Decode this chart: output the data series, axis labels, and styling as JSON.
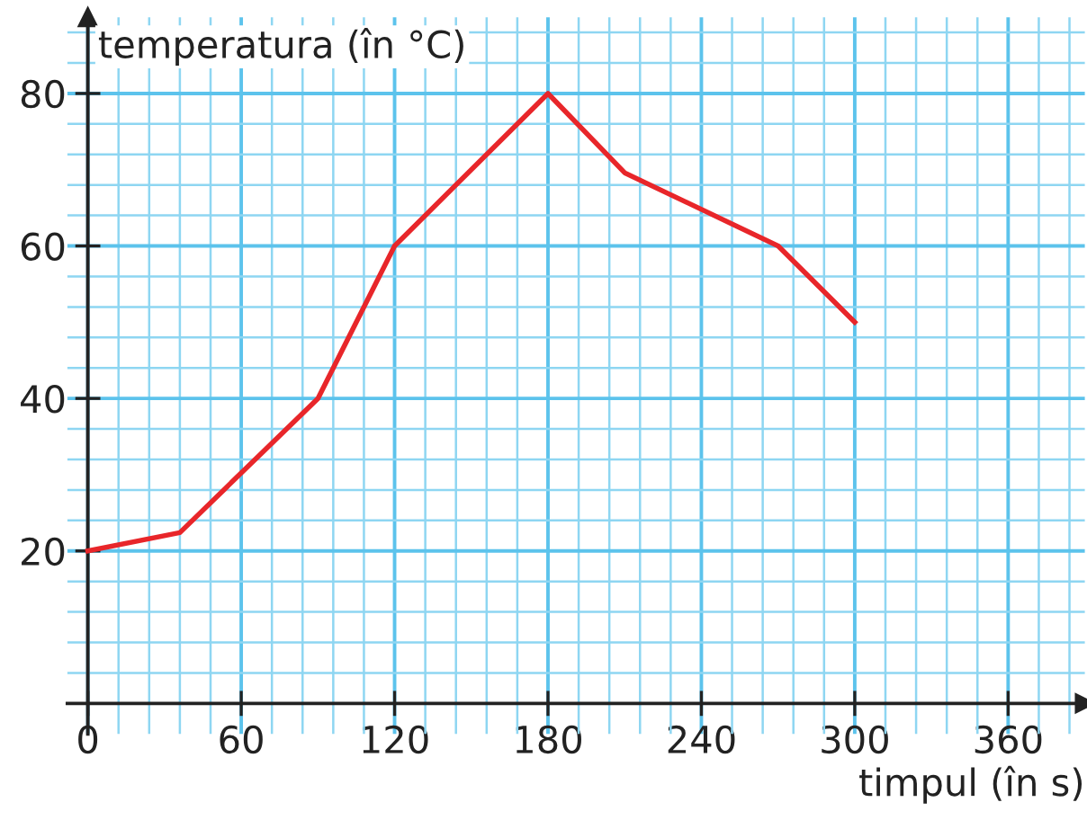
{
  "chart_data": {
    "type": "line",
    "xlabel": "timpul (în s)",
    "ylabel": "temperatura (în °C)",
    "x": [
      0,
      36,
      90,
      120,
      180,
      210,
      270,
      300
    ],
    "series": [
      {
        "color": "#e8262a",
        "values": [
          20,
          22.4,
          40,
          60,
          80,
          69.6,
          60,
          50
        ]
      }
    ],
    "xlim": [
      -8,
      390
    ],
    "ylim": [
      -4,
      90
    ],
    "xticks": [
      {
        "value": 0,
        "label": "0"
      },
      {
        "value": 12,
        "label": null
      },
      {
        "value": 24,
        "label": null
      },
      {
        "value": 36,
        "label": null
      },
      {
        "value": 48,
        "label": null
      },
      60,
      {
        "value": 72,
        "label": null
      },
      {
        "value": 84,
        "label": null
      },
      {
        "value": 96,
        "label": null
      },
      {
        "value": 108,
        "label": null
      },
      120,
      {
        "value": 132,
        "label": null
      },
      {
        "value": 144,
        "label": null
      },
      {
        "value": 156,
        "label": null
      },
      {
        "value": 168,
        "label": null
      },
      180,
      {
        "value": 192,
        "label": null
      },
      {
        "value": 204,
        "label": null
      },
      {
        "value": 216,
        "label": null
      },
      {
        "value": 228,
        "label": null
      },
      240,
      {
        "value": 252,
        "label": null
      },
      {
        "value": 264,
        "label": null
      },
      {
        "value": 276,
        "label": null
      },
      {
        "value": 288,
        "label": null
      },
      300,
      {
        "value": 312,
        "label": null
      },
      {
        "value": 324,
        "label": null
      },
      {
        "value": 336,
        "label": null
      },
      {
        "value": 348,
        "label": null
      },
      360,
      {
        "value": 372,
        "label": null
      },
      {
        "value": 384,
        "label": null
      }
    ],
    "yticks": [
      {
        "value": 4,
        "label": null
      },
      {
        "value": 8,
        "label": null
      },
      {
        "value": 12,
        "label": null
      },
      {
        "value": 16,
        "label": null
      },
      20,
      {
        "value": 24,
        "label": null
      },
      {
        "value": 28,
        "label": null
      },
      {
        "value": 32,
        "label": null
      },
      {
        "value": 36,
        "label": null
      },
      40,
      {
        "value": 44,
        "label": null
      },
      {
        "value": 48,
        "label": null
      },
      {
        "value": 52,
        "label": null
      },
      {
        "value": 56,
        "label": null
      },
      60,
      {
        "value": 64,
        "label": null
      },
      {
        "value": 68,
        "label": null
      },
      {
        "value": 72,
        "label": null
      },
      {
        "value": 76,
        "label": null
      },
      80,
      {
        "value": 84,
        "label": null
      },
      {
        "value": 88,
        "label": null
      }
    ],
    "grid": true,
    "legend": false,
    "marker": "none",
    "line_style": "solid"
  }
}
